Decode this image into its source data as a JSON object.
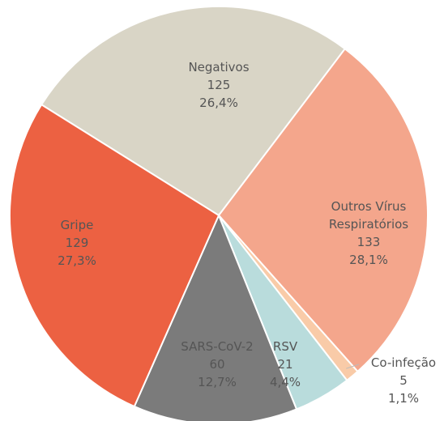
{
  "chart_data": {
    "type": "pie",
    "categories": [
      "Negativos",
      "Outros Vírus Respiratórios",
      "Co-infeção",
      "RSV",
      "SARS-CoV-2",
      "Gripe"
    ],
    "values": [
      125,
      133,
      5,
      21,
      60,
      129
    ],
    "percent_labels": [
      "26,4%",
      "28,1%",
      "1,1%",
      "4,4%",
      "12,7%",
      "27,3%"
    ],
    "colors": [
      "#d9d5c6",
      "#f4a68c",
      "#f9cba8",
      "#b9dcdc",
      "#7b7b7b",
      "#ec6142"
    ]
  }
}
